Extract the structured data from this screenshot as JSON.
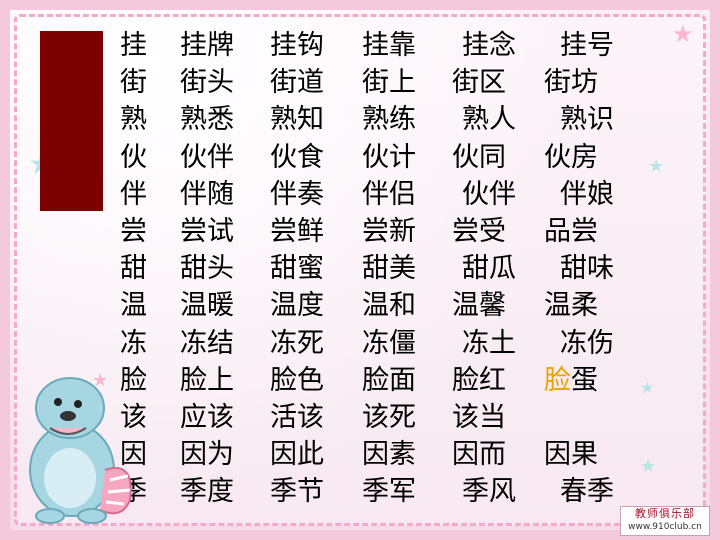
{
  "rows": [
    [
      "挂",
      "挂牌",
      "挂钩",
      "挂靠",
      "挂念",
      "挂号"
    ],
    [
      "街",
      "街头",
      "街道",
      "街上",
      "街区",
      "街坊"
    ],
    [
      "熟",
      "熟悉",
      "熟知",
      "熟练",
      "熟人",
      "熟识"
    ],
    [
      "伙",
      "伙伴",
      "伙食",
      "伙计",
      "伙同",
      "伙房"
    ],
    [
      "伴",
      "伴随",
      "伴奏",
      "伴侣",
      "伙伴",
      "伴娘"
    ],
    [
      "尝",
      "尝试",
      "尝鲜",
      "尝新",
      "尝受",
      "品尝"
    ],
    [
      "甜",
      "甜头",
      "甜蜜",
      "甜美",
      "甜瓜",
      "甜味"
    ],
    [
      "温",
      "温暖",
      "温度",
      "温和",
      "温馨",
      "温柔"
    ],
    [
      "冻",
      "冻结",
      "冻死",
      "冻僵",
      "冻土",
      "冻伤"
    ],
    [
      "脸",
      "脸上",
      "脸色",
      "脸面",
      "脸红",
      "脸蛋"
    ],
    [
      "该",
      "应该",
      "活该",
      "该死",
      "该当",
      ""
    ],
    [
      "因",
      "因为",
      "因此",
      "因素",
      "因而",
      "因果"
    ],
    [
      "季",
      "季度",
      "季节",
      "季军",
      "季风",
      "春季"
    ]
  ],
  "highlight": {
    "row": 9,
    "col": 5,
    "char_index": 0
  },
  "colors": {
    "text": "#000000",
    "highlight": "#e8a300",
    "title_bar": "#7d0000",
    "frame_pink": "#f7a7c8"
  },
  "logo": {
    "title": "教师俱乐部",
    "url": "www.910club.cn"
  },
  "icons": [
    "star-icon",
    "cartoon-otter-mascot"
  ]
}
